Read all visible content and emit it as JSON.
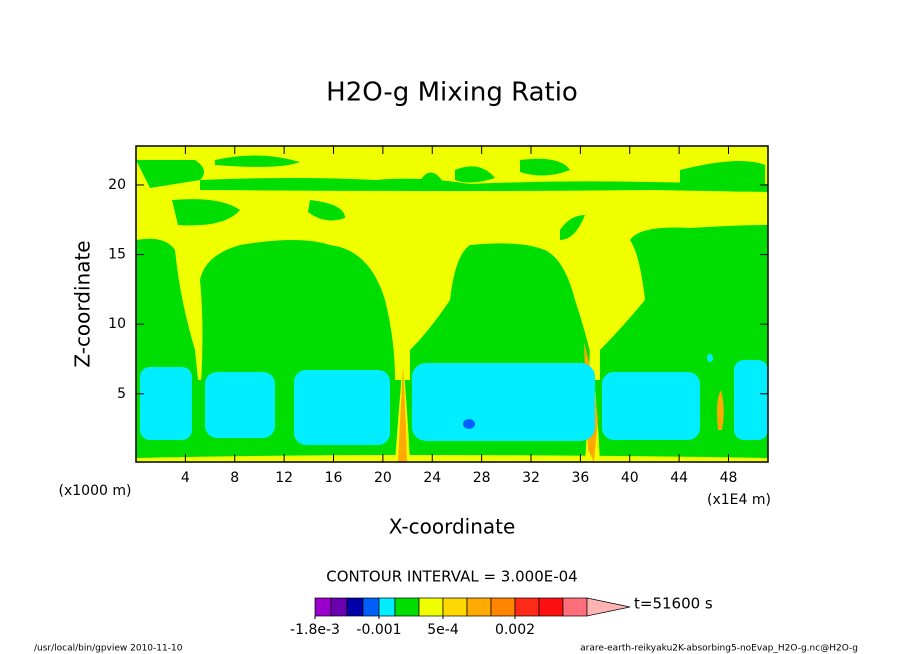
{
  "chart_data": {
    "type": "contour",
    "title": "H2O-g Mixing Ratio",
    "xlabel": "X-coordinate",
    "ylabel": "Z-coordinate",
    "x_unit_label": "(x1000 m)",
    "x_unit_label_right": "(x1E4 m)",
    "xlim": [
      0,
      51.2
    ],
    "xticks": [
      4,
      8,
      12,
      16,
      20,
      24,
      28,
      32,
      36,
      40,
      44,
      48
    ],
    "ylim": [
      0.1,
      22.8
    ],
    "yticks": [
      5,
      10,
      15,
      20
    ],
    "contour_interval_label": "CONTOUR INTERVAL = 3.000E-04",
    "time_label": "t=51600 s",
    "colorbar": {
      "bounds": [
        -0.0018,
        -0.0016,
        -0.0014,
        -0.0012,
        -0.001,
        -0.0005,
        0,
        0.0005,
        0.001,
        0.0015,
        0.002,
        0.0025,
        0.003,
        0.0035
      ],
      "colors": [
        "#9900cc",
        "#6a00b0",
        "#0000a8",
        "#0060ff",
        "#00eeff",
        "#00dd00",
        "#f0ff00",
        "#ffd800",
        "#ffaa00",
        "#ff8400",
        "#ff2a1a",
        "#ff1010",
        "#ff6e7a",
        "#ffb4b4"
      ],
      "ticks": [
        {
          "value": -0.0018,
          "label": "-1.8e-3"
        },
        {
          "value": -0.001,
          "label": "-0.001"
        },
        {
          "value": 0.0005,
          "label": "5e-4"
        },
        0.002
      ]
    },
    "footer_left": "/usr/local/bin/gpview  2010-11-10",
    "footer_right": "arare-earth-reikyaku2K-absorbing5-noEvap_H2O-g.nc@H2O-g"
  }
}
